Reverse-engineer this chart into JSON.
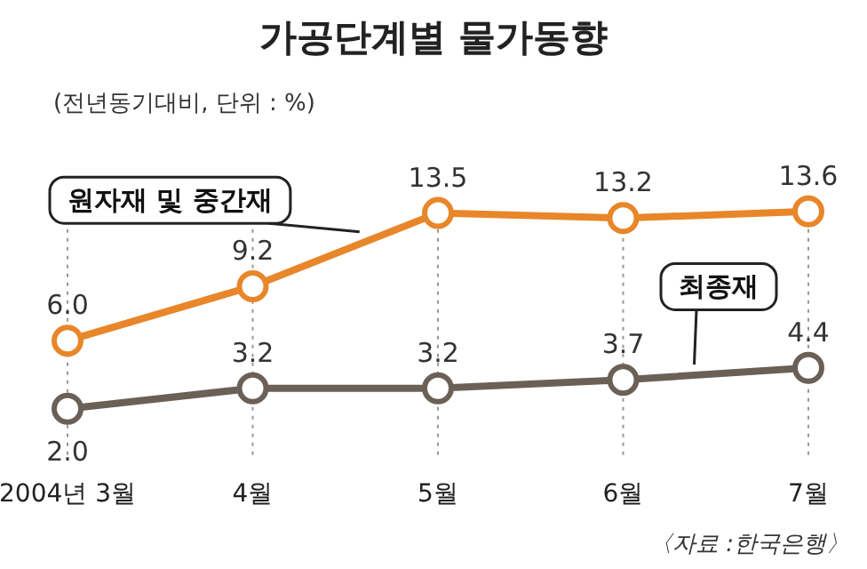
{
  "chart_data": {
    "type": "line",
    "title": "가공단계별 물가동향",
    "subtitle": "(전년동기대비, 단위 : %)",
    "categories": [
      "2004년 3월",
      "4월",
      "5월",
      "6월",
      "7월"
    ],
    "series": [
      {
        "name": "원자재 및 중간재",
        "color": "#e8862a",
        "values": [
          6.0,
          9.2,
          13.5,
          13.2,
          13.6
        ],
        "value_labels": [
          "6.0",
          "9.2",
          "13.5",
          "13.2",
          "13.6"
        ]
      },
      {
        "name": "최종재",
        "color": "#6b6056",
        "values": [
          2.0,
          3.2,
          3.2,
          3.7,
          4.4
        ],
        "value_labels": [
          "2.0",
          "3.2",
          "3.2",
          "3.7",
          "4.4"
        ]
      }
    ],
    "marker": "circle",
    "grid": "x",
    "legend": false,
    "annotations": [
      "〈자료 :한국은행〉"
    ]
  }
}
